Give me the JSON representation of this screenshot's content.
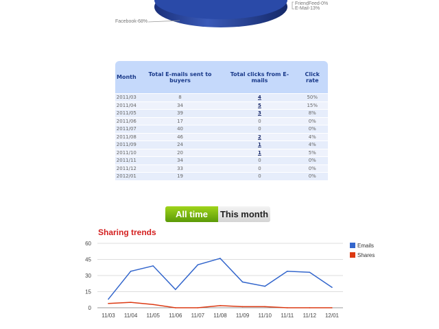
{
  "pie": {
    "labels": [
      "FriendFeed-0%",
      "E-Mail-13%",
      "Facebook-68%"
    ],
    "color": "#2a4aa8"
  },
  "table": {
    "headers": [
      "Month",
      "Total E-mails sent to buyers",
      "Total clicks from E-mails",
      "Click rate"
    ],
    "rows": [
      [
        "2011/03",
        "8",
        "4",
        "50%"
      ],
      [
        "2011/04",
        "34",
        "5",
        "15%"
      ],
      [
        "2011/05",
        "39",
        "3",
        "8%"
      ],
      [
        "2011/06",
        "17",
        "0",
        "0%"
      ],
      [
        "2011/07",
        "40",
        "0",
        "0%"
      ],
      [
        "2011/08",
        "46",
        "2",
        "4%"
      ],
      [
        "2011/09",
        "24",
        "1",
        "4%"
      ],
      [
        "2011/10",
        "20",
        "1",
        "5%"
      ],
      [
        "2011/11",
        "34",
        "0",
        "0%"
      ],
      [
        "2011/12",
        "33",
        "0",
        "0%"
      ],
      [
        "2012/01",
        "19",
        "0",
        "0%"
      ]
    ]
  },
  "toggle": {
    "all_time": "All time",
    "this_month": "This month"
  },
  "chart_data": {
    "type": "line",
    "title": "Sharing trends",
    "categories": [
      "11/03",
      "11/04",
      "11/05",
      "11/06",
      "11/07",
      "11/08",
      "11/09",
      "11/10",
      "11/11",
      "11/12",
      "12/01"
    ],
    "ylim": [
      0,
      60
    ],
    "yticks": [
      0,
      15,
      30,
      45,
      60
    ],
    "grid": true,
    "legend": "right",
    "series": [
      {
        "name": "Emails",
        "color": "#3366cc",
        "values": [
          8,
          34,
          39,
          17,
          40,
          46,
          24,
          20,
          34,
          33,
          19
        ]
      },
      {
        "name": "Shares",
        "color": "#dc3912",
        "values": [
          4,
          5,
          3,
          0,
          0,
          2,
          1,
          1,
          0,
          0,
          0
        ]
      }
    ]
  }
}
